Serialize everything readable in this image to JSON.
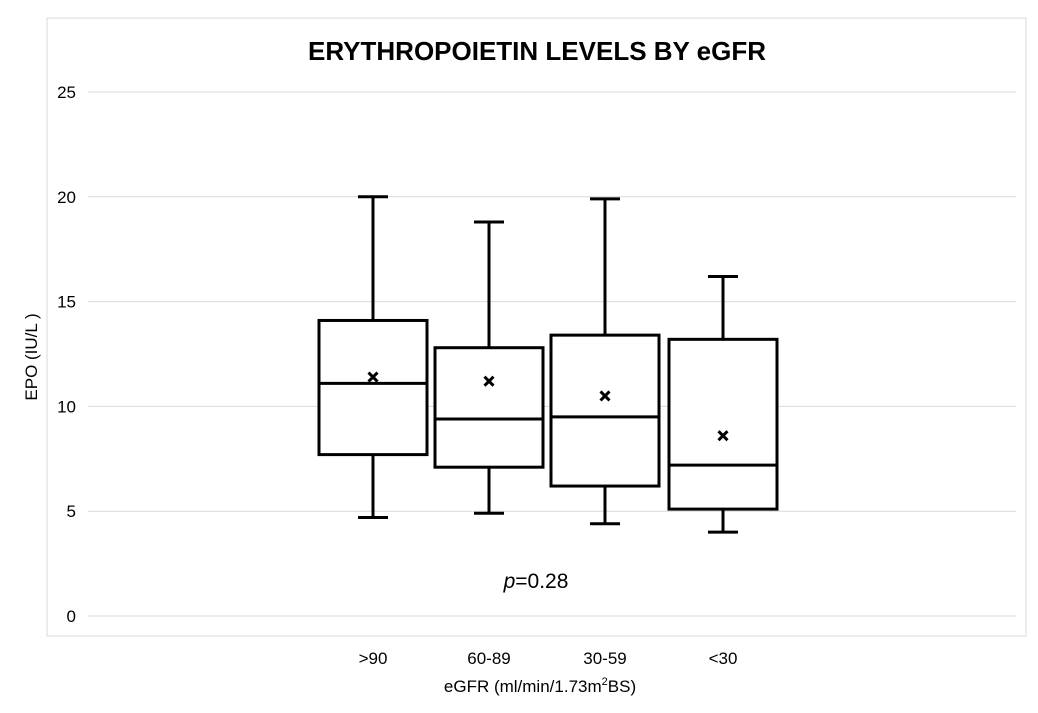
{
  "chart_data": {
    "type": "box",
    "title": "ERYTHROPOIETIN LEVELS BY eGFR",
    "ylabel": "EPO (IU/L )",
    "xlabel": {
      "prefix": "eGFR (ml/min/1.73m",
      "superscript": "2",
      "suffix": "BS)"
    },
    "ylim": [
      0,
      25
    ],
    "yticks": [
      0,
      5,
      10,
      15,
      20,
      25
    ],
    "grid": true,
    "categories": [
      ">90",
      "60-89",
      "30-59",
      "<30"
    ],
    "boxes": [
      {
        "category": ">90",
        "min": 4.7,
        "q1": 7.7,
        "median": 11.1,
        "q3": 14.1,
        "max": 20.0,
        "mean": 11.4
      },
      {
        "category": "60-89",
        "min": 4.9,
        "q1": 7.1,
        "median": 9.4,
        "q3": 12.8,
        "max": 18.8,
        "mean": 11.2
      },
      {
        "category": "30-59",
        "min": 4.4,
        "q1": 6.2,
        "median": 9.5,
        "q3": 13.4,
        "max": 19.9,
        "mean": 10.5
      },
      {
        "category": "<30",
        "min": 4.0,
        "q1": 5.1,
        "median": 7.2,
        "q3": 13.2,
        "max": 16.2,
        "mean": 8.6
      }
    ],
    "annotation": {
      "italic": "p",
      "text": "=0.28"
    },
    "colors": {
      "box": "#000000",
      "grid": "#d9d9d9",
      "frame": "#d9d9d9"
    }
  }
}
